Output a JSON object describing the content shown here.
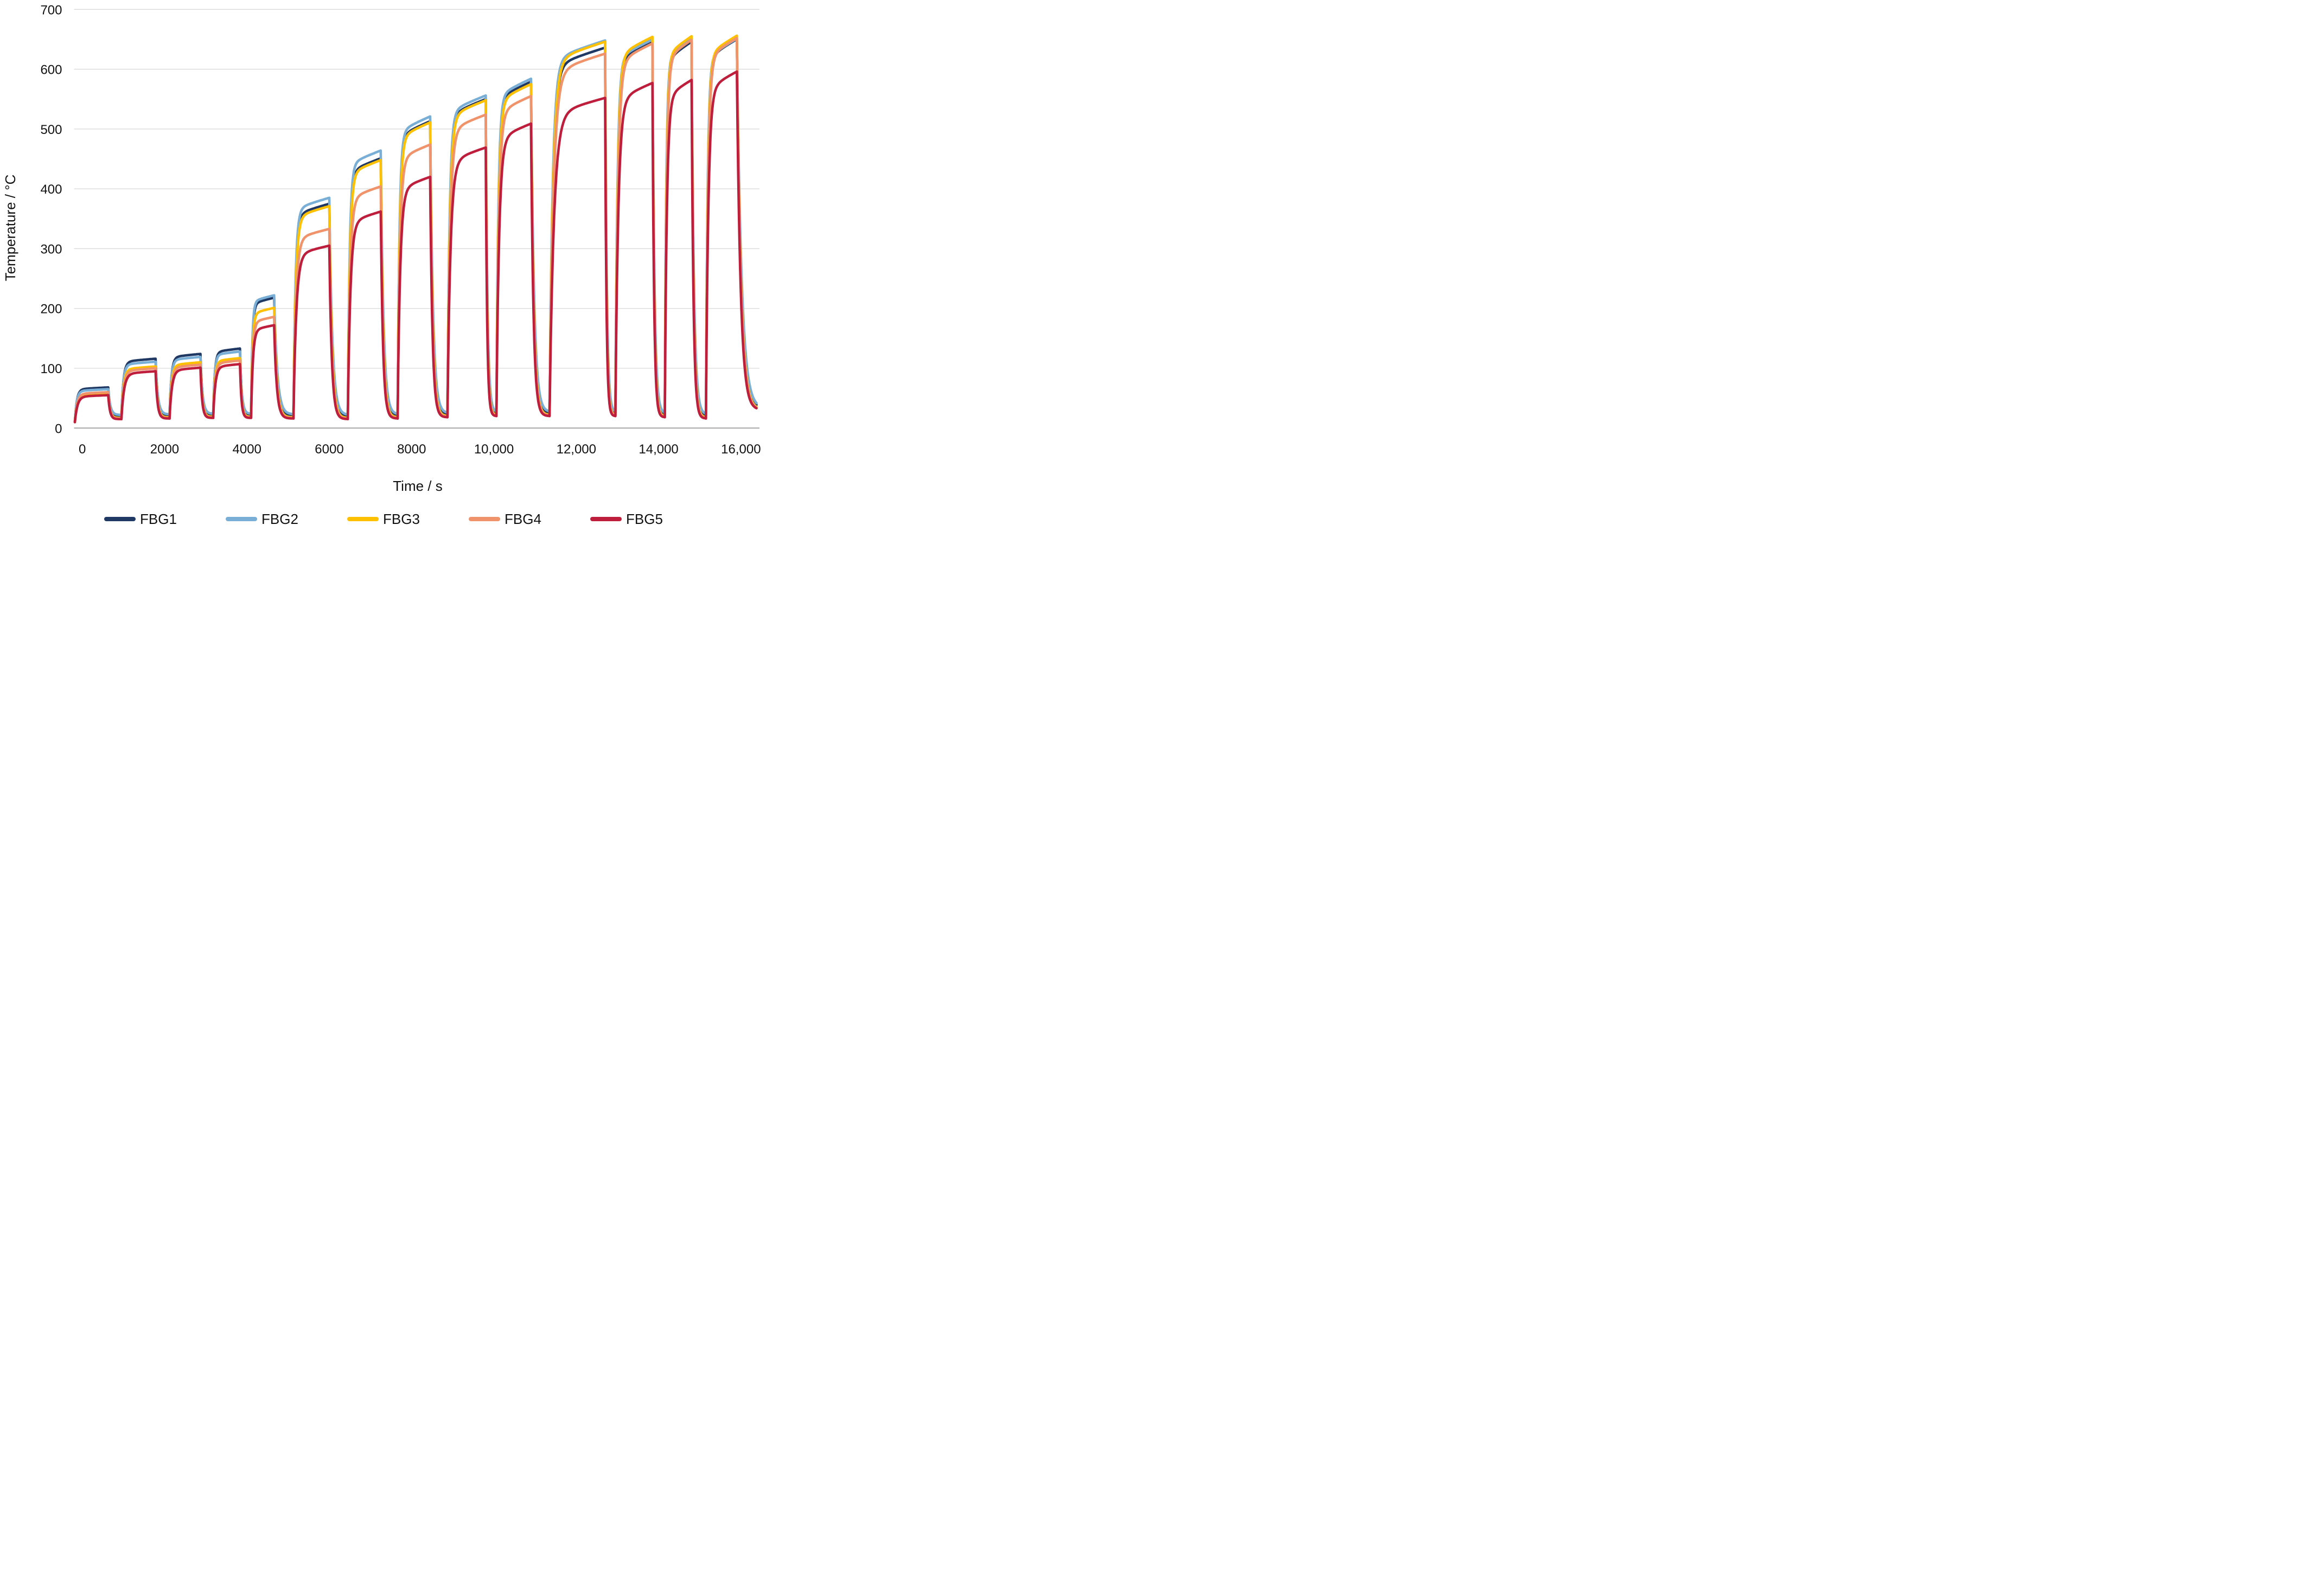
{
  "chart_data": {
    "type": "line",
    "title": "",
    "xlabel": "Time / s",
    "ylabel": "Temperature  /  °C",
    "xlim": [
      -200,
      16450
    ],
    "ylim": [
      0,
      700
    ],
    "grid": "horizontal-only",
    "legend_position": "bottom",
    "x_ticks": [
      {
        "value": 0,
        "label": "0"
      },
      {
        "value": 2000,
        "label": "2000"
      },
      {
        "value": 4000,
        "label": "4000"
      },
      {
        "value": 6000,
        "label": "6000"
      },
      {
        "value": 8000,
        "label": "8000"
      },
      {
        "value": 10000,
        "label": "10,000"
      },
      {
        "value": 12000,
        "label": "12,000"
      },
      {
        "value": 14000,
        "label": "14,000"
      },
      {
        "value": 16000,
        "label": "16,000"
      }
    ],
    "y_ticks": [
      {
        "value": 0,
        "label": "0"
      },
      {
        "value": 100,
        "label": "100"
      },
      {
        "value": 200,
        "label": "200"
      },
      {
        "value": 300,
        "label": "300"
      },
      {
        "value": 400,
        "label": "400"
      },
      {
        "value": 500,
        "label": "500"
      },
      {
        "value": 600,
        "label": "600"
      },
      {
        "value": 700,
        "label": "700"
      }
    ],
    "series": [
      {
        "name": "FBG1",
        "color": "#1F3864"
      },
      {
        "name": "FBG2",
        "color": "#79AED6"
      },
      {
        "name": "FBG3",
        "color": "#FFC000"
      },
      {
        "name": "FBG4",
        "color": "#F0936B"
      },
      {
        "name": "FBG5",
        "color": "#BE1E3C"
      }
    ],
    "start_temperature_C": 10,
    "end_of_run": {
      "time_s": 16380,
      "approx_temperature_C": 36
    },
    "cycles": [
      {
        "heat_start_s": -180,
        "cool_start_s": 630,
        "plateau_C": {
          "FBG1": 68,
          "FBG2": 65,
          "FBG3": 58,
          "FBG4": 60,
          "FBG5": 55
        },
        "dip_after_C": 15
      },
      {
        "heat_start_s": 950,
        "cool_start_s": 1780,
        "plateau_C": {
          "FBG1": 116,
          "FBG2": 111,
          "FBG3": 103,
          "FBG4": 100,
          "FBG5": 95
        },
        "dip_after_C": 16
      },
      {
        "heat_start_s": 2120,
        "cool_start_s": 2870,
        "plateau_C": {
          "FBG1": 124,
          "FBG2": 119,
          "FBG3": 110,
          "FBG4": 106,
          "FBG5": 101
        },
        "dip_after_C": 17
      },
      {
        "heat_start_s": 3180,
        "cool_start_s": 3830,
        "plateau_C": {
          "FBG1": 133,
          "FBG2": 128,
          "FBG3": 117,
          "FBG4": 113,
          "FBG5": 107
        },
        "dip_after_C": 17
      },
      {
        "heat_start_s": 4100,
        "cool_start_s": 4660,
        "plateau_C": {
          "FBG1": 218,
          "FBG2": 222,
          "FBG3": 201,
          "FBG4": 186,
          "FBG5": 172
        },
        "dip_after_C": 16
      },
      {
        "heat_start_s": 5130,
        "cool_start_s": 6000,
        "plateau_C": {
          "FBG1": 375,
          "FBG2": 385,
          "FBG3": 371,
          "FBG4": 333,
          "FBG5": 305
        },
        "dip_after_C": 15
      },
      {
        "heat_start_s": 6450,
        "cool_start_s": 7250,
        "plateau_C": {
          "FBG1": 451,
          "FBG2": 464,
          "FBG3": 448,
          "FBG4": 404,
          "FBG5": 362
        },
        "dip_after_C": 16
      },
      {
        "heat_start_s": 7660,
        "cool_start_s": 8450,
        "plateau_C": {
          "FBG1": 513,
          "FBG2": 521,
          "FBG3": 511,
          "FBG4": 474,
          "FBG5": 420
        },
        "dip_after_C": 18
      },
      {
        "heat_start_s": 8870,
        "cool_start_s": 9800,
        "plateau_C": {
          "FBG1": 550,
          "FBG2": 556,
          "FBG3": 548,
          "FBG4": 524,
          "FBG5": 469
        },
        "dip_after_C": 20
      },
      {
        "heat_start_s": 10060,
        "cool_start_s": 10900,
        "plateau_C": {
          "FBG1": 579,
          "FBG2": 584,
          "FBG3": 575,
          "FBG4": 555,
          "FBG5": 509
        },
        "dip_after_C": 20
      },
      {
        "heat_start_s": 11350,
        "cool_start_s": 12700,
        "plateau_C": {
          "FBG1": 636,
          "FBG2": 648,
          "FBG3": 646,
          "FBG4": 626,
          "FBG5": 552
        },
        "dip_after_C": 20
      },
      {
        "heat_start_s": 12950,
        "cool_start_s": 13850,
        "plateau_C": {
          "FBG1": 645,
          "FBG2": 650,
          "FBG3": 654,
          "FBG4": 643,
          "FBG5": 577
        },
        "dip_after_C": 18
      },
      {
        "heat_start_s": 14150,
        "cool_start_s": 14800,
        "plateau_C": {
          "FBG1": 646,
          "FBG2": 651,
          "FBG3": 655,
          "FBG4": 649,
          "FBG5": 582
        },
        "dip_after_C": 16
      },
      {
        "heat_start_s": 15150,
        "cool_start_s": 15900,
        "plateau_C": {
          "FBG1": 650,
          "FBG2": 651,
          "FBG3": 656,
          "FBG4": 652,
          "FBG5": 596
        },
        "dip_after_C": 30
      }
    ],
    "dip_series_offset_C": {
      "FBG1": 5,
      "FBG2": 7,
      "FBG3": 2,
      "FBG4": 1,
      "FBG5": 0
    },
    "colors": {
      "gridline": "#D9D9D9",
      "axis_line": "#A6A6A6",
      "text": "#111111",
      "background": "#FFFFFF"
    }
  }
}
